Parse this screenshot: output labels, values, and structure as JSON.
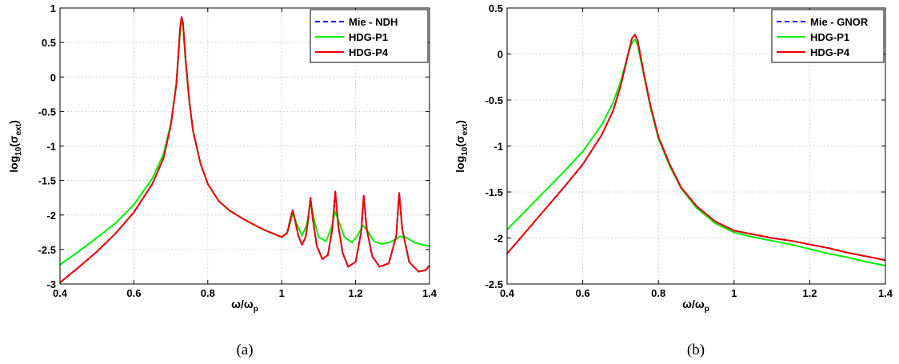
{
  "chart_data": [
    {
      "type": "line",
      "panel_label": "(a)",
      "xlabel": "ω/ω",
      "xlabel_sub": "p",
      "ylabel": "log",
      "ylabel_sub": "10",
      "ylabel_arg": "(σ",
      "ylabel_arg_sub": "ext",
      "ylabel_close": ")",
      "xlim": [
        0.4,
        1.4
      ],
      "ylim": [
        -3,
        1
      ],
      "xticks": [
        0.4,
        0.6,
        0.8,
        1,
        1.2,
        1.4
      ],
      "xtick_labels": [
        "0.4",
        "0.6",
        "0.8",
        "1",
        "1.2",
        "1.4"
      ],
      "yticks": [
        -3,
        -2.5,
        -2,
        -1.5,
        -1,
        -0.5,
        0,
        0.5,
        1
      ],
      "ytick_labels": [
        "-3",
        "-2.5",
        "-2",
        "-1.5",
        "-1",
        "-0.5",
        "0",
        "0.5",
        "1"
      ],
      "grid": true,
      "legend_position": "top-right",
      "series": [
        {
          "name": "Mie - NDH",
          "color": "#0000ff",
          "style": "dashed",
          "points": [
            [
              0.4,
              -2.98
            ],
            [
              0.45,
              -2.76
            ],
            [
              0.5,
              -2.53
            ],
            [
              0.55,
              -2.27
            ],
            [
              0.6,
              -1.96
            ],
            [
              0.65,
              -1.55
            ],
            [
              0.68,
              -1.18
            ],
            [
              0.7,
              -0.7
            ],
            [
              0.715,
              -0.1
            ],
            [
              0.72,
              0.3
            ],
            [
              0.725,
              0.7
            ],
            [
              0.729,
              0.87
            ],
            [
              0.733,
              0.78
            ],
            [
              0.74,
              0.25
            ],
            [
              0.75,
              -0.35
            ],
            [
              0.76,
              -0.78
            ],
            [
              0.78,
              -1.25
            ],
            [
              0.8,
              -1.55
            ],
            [
              0.83,
              -1.8
            ],
            [
              0.86,
              -1.94
            ],
            [
              0.9,
              -2.07
            ],
            [
              0.95,
              -2.21
            ],
            [
              1.0,
              -2.32
            ],
            [
              1.015,
              -2.26
            ],
            [
              1.025,
              -2.02
            ],
            [
              1.03,
              -1.93
            ],
            [
              1.035,
              -2.05
            ],
            [
              1.045,
              -2.3
            ],
            [
              1.055,
              -2.43
            ],
            [
              1.065,
              -2.32
            ],
            [
              1.072,
              -2.05
            ],
            [
              1.078,
              -1.75
            ],
            [
              1.084,
              -2.05
            ],
            [
              1.095,
              -2.45
            ],
            [
              1.11,
              -2.64
            ],
            [
              1.125,
              -2.58
            ],
            [
              1.137,
              -2.2
            ],
            [
              1.145,
              -1.66
            ],
            [
              1.153,
              -2.15
            ],
            [
              1.165,
              -2.55
            ],
            [
              1.18,
              -2.75
            ],
            [
              1.2,
              -2.68
            ],
            [
              1.215,
              -2.25
            ],
            [
              1.222,
              -1.72
            ],
            [
              1.23,
              -2.2
            ],
            [
              1.245,
              -2.6
            ],
            [
              1.265,
              -2.75
            ],
            [
              1.29,
              -2.7
            ],
            [
              1.31,
              -2.3
            ],
            [
              1.318,
              -1.68
            ],
            [
              1.326,
              -2.2
            ],
            [
              1.345,
              -2.68
            ],
            [
              1.37,
              -2.82
            ],
            [
              1.39,
              -2.8
            ],
            [
              1.4,
              -2.73
            ]
          ]
        },
        {
          "name": "HDG-P1",
          "color": "#00ee00",
          "style": "solid",
          "points": [
            [
              0.4,
              -2.72
            ],
            [
              0.45,
              -2.53
            ],
            [
              0.5,
              -2.33
            ],
            [
              0.55,
              -2.12
            ],
            [
              0.6,
              -1.85
            ],
            [
              0.65,
              -1.47
            ],
            [
              0.68,
              -1.12
            ],
            [
              0.7,
              -0.68
            ],
            [
              0.715,
              -0.1
            ],
            [
              0.72,
              0.28
            ],
            [
              0.725,
              0.66
            ],
            [
              0.729,
              0.83
            ],
            [
              0.733,
              0.74
            ],
            [
              0.74,
              0.22
            ],
            [
              0.75,
              -0.36
            ],
            [
              0.76,
              -0.78
            ],
            [
              0.78,
              -1.25
            ],
            [
              0.8,
              -1.55
            ],
            [
              0.83,
              -1.8
            ],
            [
              0.86,
              -1.94
            ],
            [
              0.9,
              -2.07
            ],
            [
              0.95,
              -2.21
            ],
            [
              1.0,
              -2.32
            ],
            [
              1.015,
              -2.26
            ],
            [
              1.025,
              -2.08
            ],
            [
              1.03,
              -1.98
            ],
            [
              1.04,
              -2.12
            ],
            [
              1.055,
              -2.3
            ],
            [
              1.068,
              -2.14
            ],
            [
              1.078,
              -1.8
            ],
            [
              1.088,
              -2.08
            ],
            [
              1.1,
              -2.32
            ],
            [
              1.12,
              -2.38
            ],
            [
              1.135,
              -2.18
            ],
            [
              1.145,
              -1.95
            ],
            [
              1.155,
              -2.1
            ],
            [
              1.17,
              -2.32
            ],
            [
              1.19,
              -2.4
            ],
            [
              1.205,
              -2.3
            ],
            [
              1.22,
              -2.15
            ],
            [
              1.235,
              -2.25
            ],
            [
              1.25,
              -2.38
            ],
            [
              1.27,
              -2.42
            ],
            [
              1.29,
              -2.4
            ],
            [
              1.31,
              -2.35
            ],
            [
              1.32,
              -2.31
            ],
            [
              1.335,
              -2.32
            ],
            [
              1.36,
              -2.4
            ],
            [
              1.38,
              -2.43
            ],
            [
              1.4,
              -2.45
            ]
          ]
        },
        {
          "name": "HDG-P4",
          "color": "#ee0000",
          "style": "solid",
          "points": [
            [
              0.4,
              -2.98
            ],
            [
              0.45,
              -2.76
            ],
            [
              0.5,
              -2.53
            ],
            [
              0.55,
              -2.27
            ],
            [
              0.6,
              -1.96
            ],
            [
              0.65,
              -1.55
            ],
            [
              0.68,
              -1.18
            ],
            [
              0.7,
              -0.7
            ],
            [
              0.715,
              -0.1
            ],
            [
              0.72,
              0.3
            ],
            [
              0.725,
              0.7
            ],
            [
              0.729,
              0.87
            ],
            [
              0.733,
              0.78
            ],
            [
              0.74,
              0.25
            ],
            [
              0.75,
              -0.35
            ],
            [
              0.76,
              -0.78
            ],
            [
              0.78,
              -1.25
            ],
            [
              0.8,
              -1.55
            ],
            [
              0.83,
              -1.8
            ],
            [
              0.86,
              -1.94
            ],
            [
              0.9,
              -2.07
            ],
            [
              0.95,
              -2.21
            ],
            [
              1.0,
              -2.32
            ],
            [
              1.015,
              -2.26
            ],
            [
              1.025,
              -2.02
            ],
            [
              1.03,
              -1.93
            ],
            [
              1.035,
              -2.05
            ],
            [
              1.045,
              -2.3
            ],
            [
              1.055,
              -2.43
            ],
            [
              1.065,
              -2.32
            ],
            [
              1.072,
              -2.05
            ],
            [
              1.078,
              -1.75
            ],
            [
              1.084,
              -2.05
            ],
            [
              1.095,
              -2.45
            ],
            [
              1.11,
              -2.64
            ],
            [
              1.125,
              -2.58
            ],
            [
              1.137,
              -2.2
            ],
            [
              1.145,
              -1.66
            ],
            [
              1.153,
              -2.15
            ],
            [
              1.165,
              -2.55
            ],
            [
              1.18,
              -2.75
            ],
            [
              1.2,
              -2.68
            ],
            [
              1.215,
              -2.25
            ],
            [
              1.222,
              -1.72
            ],
            [
              1.23,
              -2.2
            ],
            [
              1.245,
              -2.6
            ],
            [
              1.265,
              -2.75
            ],
            [
              1.29,
              -2.7
            ],
            [
              1.31,
              -2.3
            ],
            [
              1.318,
              -1.68
            ],
            [
              1.326,
              -2.2
            ],
            [
              1.345,
              -2.68
            ],
            [
              1.37,
              -2.82
            ],
            [
              1.39,
              -2.8
            ],
            [
              1.4,
              -2.73
            ]
          ]
        }
      ]
    },
    {
      "type": "line",
      "panel_label": "(b)",
      "xlabel": "ω/ω",
      "xlabel_sub": "p",
      "ylabel": "log",
      "ylabel_sub": "10",
      "ylabel_arg": "(σ",
      "ylabel_arg_sub": "ext",
      "ylabel_close": ")",
      "xlim": [
        0.4,
        1.4
      ],
      "ylim": [
        -2.5,
        0.5
      ],
      "xticks": [
        0.4,
        0.6,
        0.8,
        1,
        1.2,
        1.4
      ],
      "xtick_labels": [
        "0.4",
        "0.6",
        "0.8",
        "1",
        "1.2",
        "1.4"
      ],
      "yticks": [
        -2.5,
        -2,
        -1.5,
        -1,
        -0.5,
        0,
        0.5
      ],
      "ytick_labels": [
        "-2.5",
        "-2",
        "-1.5",
        "-1",
        "-0.5",
        "0",
        "0.5"
      ],
      "grid": true,
      "legend_position": "top-right",
      "series": [
        {
          "name": "Mie - GNOR",
          "color": "#0000ff",
          "style": "dashed",
          "points": [
            [
              0.4,
              -2.17
            ],
            [
              0.45,
              -1.93
            ],
            [
              0.5,
              -1.69
            ],
            [
              0.55,
              -1.45
            ],
            [
              0.6,
              -1.2
            ],
            [
              0.65,
              -0.88
            ],
            [
              0.68,
              -0.62
            ],
            [
              0.7,
              -0.35
            ],
            [
              0.72,
              0.0
            ],
            [
              0.73,
              0.17
            ],
            [
              0.738,
              0.21
            ],
            [
              0.745,
              0.15
            ],
            [
              0.76,
              -0.18
            ],
            [
              0.78,
              -0.58
            ],
            [
              0.8,
              -0.9
            ],
            [
              0.83,
              -1.2
            ],
            [
              0.86,
              -1.45
            ],
            [
              0.9,
              -1.65
            ],
            [
              0.95,
              -1.82
            ],
            [
              1.0,
              -1.92
            ],
            [
              1.05,
              -1.96
            ],
            [
              1.1,
              -2.0
            ],
            [
              1.15,
              -2.03
            ],
            [
              1.2,
              -2.07
            ],
            [
              1.25,
              -2.11
            ],
            [
              1.3,
              -2.16
            ],
            [
              1.35,
              -2.2
            ],
            [
              1.4,
              -2.24
            ]
          ]
        },
        {
          "name": "HDG-P1",
          "color": "#00ee00",
          "style": "solid",
          "points": [
            [
              0.4,
              -1.91
            ],
            [
              0.45,
              -1.7
            ],
            [
              0.5,
              -1.49
            ],
            [
              0.55,
              -1.28
            ],
            [
              0.6,
              -1.06
            ],
            [
              0.65,
              -0.77
            ],
            [
              0.68,
              -0.53
            ],
            [
              0.7,
              -0.3
            ],
            [
              0.72,
              0.0
            ],
            [
              0.73,
              0.12
            ],
            [
              0.738,
              0.16
            ],
            [
              0.745,
              0.1
            ],
            [
              0.76,
              -0.2
            ],
            [
              0.78,
              -0.6
            ],
            [
              0.8,
              -0.92
            ],
            [
              0.83,
              -1.22
            ],
            [
              0.86,
              -1.46
            ],
            [
              0.9,
              -1.67
            ],
            [
              0.95,
              -1.84
            ],
            [
              1.0,
              -1.94
            ],
            [
              1.05,
              -1.99
            ],
            [
              1.1,
              -2.03
            ],
            [
              1.15,
              -2.07
            ],
            [
              1.2,
              -2.12
            ],
            [
              1.25,
              -2.17
            ],
            [
              1.3,
              -2.21
            ],
            [
              1.35,
              -2.26
            ],
            [
              1.4,
              -2.3
            ]
          ]
        },
        {
          "name": "HDG-P4",
          "color": "#ee0000",
          "style": "solid",
          "points": [
            [
              0.4,
              -2.17
            ],
            [
              0.45,
              -1.93
            ],
            [
              0.5,
              -1.69
            ],
            [
              0.55,
              -1.45
            ],
            [
              0.6,
              -1.2
            ],
            [
              0.65,
              -0.88
            ],
            [
              0.68,
              -0.62
            ],
            [
              0.7,
              -0.35
            ],
            [
              0.72,
              0.0
            ],
            [
              0.73,
              0.17
            ],
            [
              0.738,
              0.21
            ],
            [
              0.745,
              0.15
            ],
            [
              0.76,
              -0.18
            ],
            [
              0.78,
              -0.58
            ],
            [
              0.8,
              -0.9
            ],
            [
              0.83,
              -1.2
            ],
            [
              0.86,
              -1.45
            ],
            [
              0.9,
              -1.65
            ],
            [
              0.95,
              -1.82
            ],
            [
              1.0,
              -1.92
            ],
            [
              1.05,
              -1.96
            ],
            [
              1.1,
              -2.0
            ],
            [
              1.15,
              -2.03
            ],
            [
              1.2,
              -2.07
            ],
            [
              1.25,
              -2.11
            ],
            [
              1.3,
              -2.16
            ],
            [
              1.35,
              -2.2
            ],
            [
              1.4,
              -2.24
            ]
          ]
        }
      ]
    }
  ]
}
